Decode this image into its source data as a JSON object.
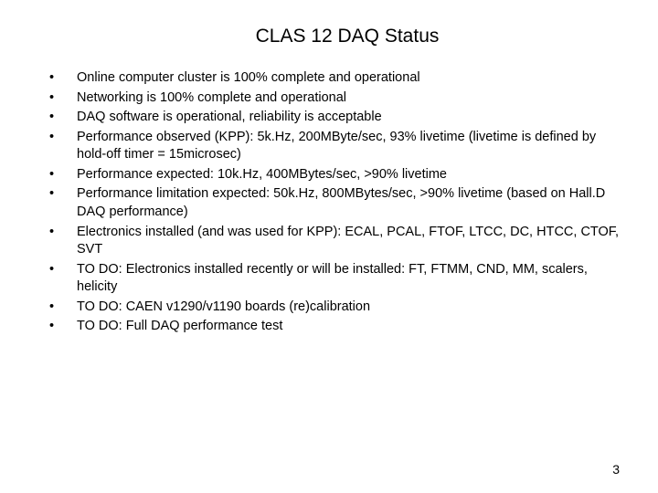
{
  "title": "CLAS 12 DAQ Status",
  "bullet_marker": "•",
  "bullets": [
    "Online computer cluster is 100% complete and operational",
    "Networking is 100% complete and operational",
    "DAQ software is operational, reliability is acceptable",
    "Performance observed (KPP): 5k.Hz, 200MByte/sec, 93% livetime (livetime is defined by hold-off timer = 15microsec)",
    "Performance expected: 10k.Hz, 400MBytes/sec, >90% livetime",
    "Performance limitation expected: 50k.Hz, 800MBytes/sec, >90% livetime (based on Hall.D DAQ performance)",
    "Electronics installed (and was used for KPP): ECAL, PCAL, FTOF, LTCC, DC, HTCC, CTOF, SVT",
    "TO DO: Electronics installed recently or will be installed: FT, FTMM, CND, MM, scalers, helicity",
    "TO DO: CAEN v1290/v1190 boards (re)calibration",
    "TO DO: Full DAQ performance test"
  ],
  "page_number": "3",
  "colors": {
    "background": "#ffffff",
    "text": "#000000"
  },
  "typography": {
    "title_fontsize": 21,
    "body_fontsize": 14.5,
    "pagenum_fontsize": 14,
    "font_family": "Arial"
  }
}
